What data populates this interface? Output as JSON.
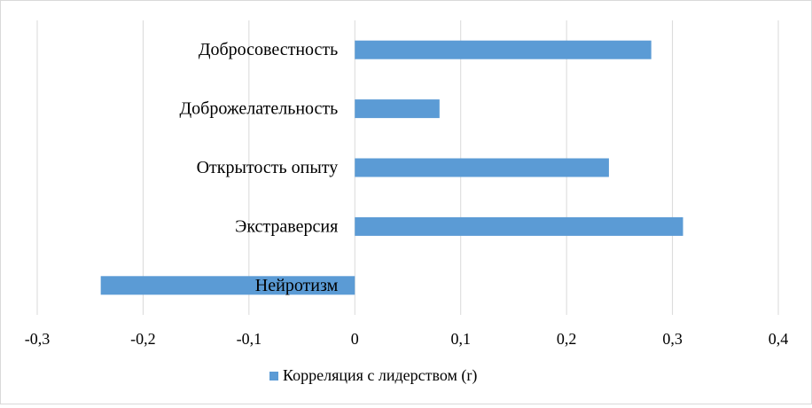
{
  "chart_data": {
    "type": "bar",
    "orientation": "horizontal",
    "categories": [
      "Нейротизм",
      "Экстраверсия",
      "Открытость опыту",
      "Доброжелательность",
      "Добросовестность"
    ],
    "series": [
      {
        "name": "Корреляция с лидерством (r)",
        "values": [
          -0.24,
          0.31,
          0.24,
          0.08,
          0.28
        ],
        "color": "#5b9bd5"
      }
    ],
    "xlim": [
      -0.3,
      0.4
    ],
    "xticks": [
      -0.3,
      -0.2,
      -0.1,
      0,
      0.1,
      0.2,
      0.3,
      0.4
    ],
    "xtick_labels": [
      "-0,3",
      "-0,2",
      "-0,1",
      "0",
      "0,1",
      "0,2",
      "0,3",
      "0,4"
    ],
    "grid": "vertical",
    "gridline_color": "#d9d9d9",
    "legend_position": "bottom",
    "title": "",
    "xlabel": "",
    "ylabel": ""
  },
  "legend": {
    "label": "Корреляция с лидерством (r)"
  }
}
